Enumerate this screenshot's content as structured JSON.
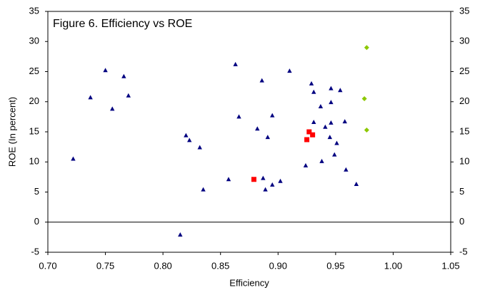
{
  "chart_data": {
    "type": "scatter",
    "title": "Figure 6. Efficiency vs ROE",
    "x_label": "Efficiency",
    "y_label": "ROE (In percent)",
    "xlim": [
      0.7,
      1.05
    ],
    "xticks": [
      {
        "value": 0.7,
        "label": "0.70"
      },
      {
        "value": 0.75,
        "label": "0.75"
      },
      {
        "value": 0.8,
        "label": "0.80"
      },
      {
        "value": 0.85,
        "label": "0.85"
      },
      {
        "value": 0.9,
        "label": "0.90"
      },
      {
        "value": 0.95,
        "label": "0.95"
      },
      {
        "value": 1.0,
        "label": "1.00"
      },
      {
        "value": 1.05,
        "label": "1.05"
      }
    ],
    "ylim": [
      -5,
      35
    ],
    "yticks": [
      -5,
      0,
      5,
      10,
      15,
      20,
      25,
      30,
      35
    ],
    "y2lim": [
      -5,
      35
    ],
    "y2ticks": [
      -5,
      0,
      5,
      10,
      15,
      20,
      25,
      30,
      35
    ],
    "grid": false,
    "series": [
      {
        "color": "#000080",
        "marker": "triangle",
        "x": [
          0.722,
          0.737,
          0.75,
          0.756,
          0.766,
          0.77,
          0.82,
          0.823,
          0.832,
          0.835,
          0.815,
          0.857,
          0.863,
          0.866,
          0.882,
          0.886,
          0.887,
          0.889,
          0.891,
          0.895,
          0.895,
          0.902,
          0.91,
          0.924,
          0.929,
          0.931,
          0.931,
          0.937,
          0.938,
          0.941,
          0.945,
          0.946,
          0.946,
          0.946,
          0.949,
          0.951,
          0.954,
          0.958,
          0.959,
          0.968
        ],
        "values": [
          10.5,
          20.7,
          25.2,
          18.8,
          24.2,
          21.0,
          14.4,
          13.6,
          12.4,
          5.4,
          -2.1,
          7.1,
          26.2,
          17.5,
          15.5,
          23.5,
          7.3,
          5.4,
          14.1,
          17.7,
          6.2,
          6.8,
          25.1,
          9.4,
          23.0,
          21.6,
          16.6,
          19.2,
          10.1,
          15.8,
          14.1,
          16.5,
          22.2,
          19.9,
          11.2,
          13.1,
          21.9,
          16.7,
          8.7,
          6.3
        ]
      },
      {
        "color": "#ff0000",
        "marker": "square",
        "x": [
          0.879,
          0.925,
          0.927,
          0.93
        ],
        "values": [
          7.1,
          13.7,
          15.0,
          14.5
        ]
      },
      {
        "color": "#8cc800",
        "marker": "diamond",
        "x": [
          0.977,
          0.975,
          0.977
        ],
        "values": [
          29.0,
          20.5,
          15.3
        ]
      }
    ]
  }
}
